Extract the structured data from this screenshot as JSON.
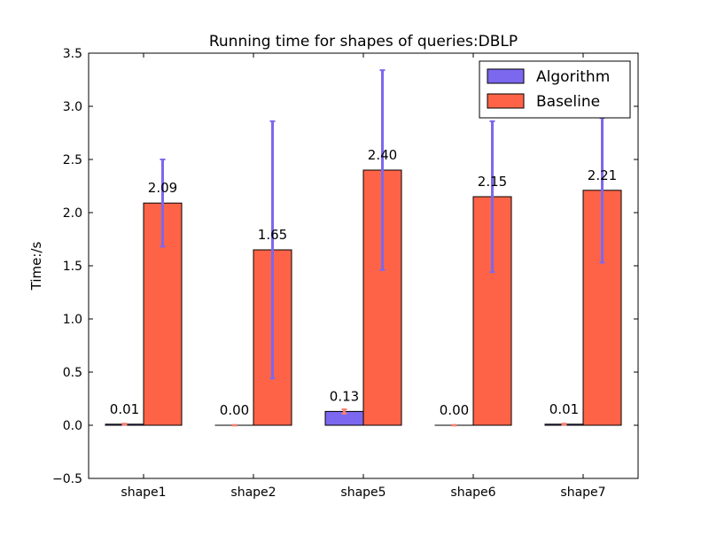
{
  "chart_data": {
    "type": "bar",
    "title": "Running time for shapes of queries:DBLP",
    "xlabel": "",
    "ylabel": "Time:/s",
    "ylim": [
      -0.5,
      3.5
    ],
    "yticks": [
      -0.5,
      0.0,
      0.5,
      1.0,
      1.5,
      2.0,
      2.5,
      3.0,
      3.5
    ],
    "ytick_labels": [
      "−0.5",
      "0.0",
      "0.5",
      "1.0",
      "1.5",
      "2.0",
      "2.5",
      "3.0",
      "3.5"
    ],
    "categories": [
      "shape1",
      "shape2",
      "shape5",
      "shape6",
      "shape7"
    ],
    "grid": false,
    "legend_position": "top-right",
    "series": [
      {
        "name": "Algorithm",
        "color": "#7b68ee",
        "values": [
          0.01,
          0.0,
          0.13,
          0.0,
          0.01
        ],
        "labels": [
          "0.01",
          "0.00",
          "0.13",
          "0.00",
          "0.01"
        ],
        "error": [
          0.005,
          0.003,
          0.02,
          0.003,
          0.005
        ],
        "error_color": "#fa8072"
      },
      {
        "name": "Baseline",
        "color": "#ff6347",
        "values": [
          2.09,
          1.65,
          2.4,
          2.15,
          2.21
        ],
        "labels": [
          "2.09",
          "1.65",
          "2.40",
          "2.15",
          "2.21"
        ],
        "error": [
          0.41,
          1.21,
          0.94,
          0.71,
          0.68
        ],
        "error_color": "#7b68ee"
      }
    ]
  }
}
